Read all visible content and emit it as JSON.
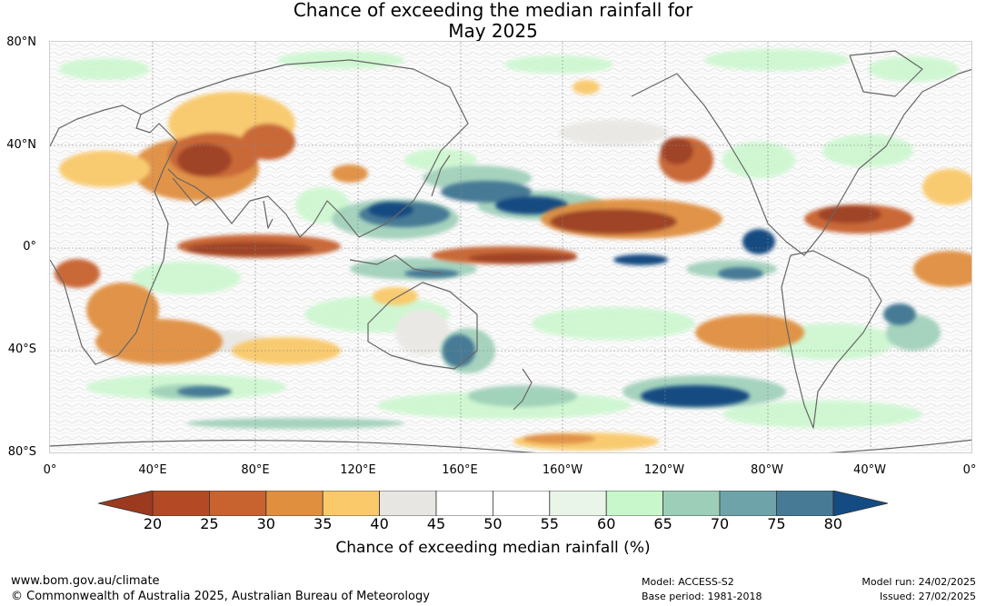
{
  "title": {
    "line1": "Chance of exceeding the median rainfall for",
    "line2": "May 2025"
  },
  "map": {
    "lat_labels": [
      "80°N",
      "40°N",
      "0°",
      "40°S",
      "80°S"
    ],
    "lon_labels": [
      "0°",
      "40°E",
      "80°E",
      "120°E",
      "160°E",
      "160°W",
      "120°W",
      "80°W",
      "40°W",
      "0°"
    ]
  },
  "colorbar": {
    "ticks": [
      "20",
      "25",
      "30",
      "35",
      "40",
      "45",
      "50",
      "55",
      "60",
      "65",
      "70",
      "75",
      "80"
    ],
    "colors": [
      "#9c3a1f",
      "#b34a25",
      "#c8622f",
      "#e08f3f",
      "#f9c96a",
      "#e8e6e2",
      "#ffffff",
      "#ffffff",
      "#e9f5e8",
      "#c9f7cc",
      "#9dcfb8",
      "#6ea3a9",
      "#477a95",
      "#134b82"
    ],
    "label": "Chance of exceeding median rainfall (%)"
  },
  "footer": {
    "url": "www.bom.gov.au/climate",
    "copyright": "© Commonwealth of Australia 2025, Australian Bureau of Meteorology",
    "model": "Model: ACCESS-S2",
    "base_period": "Base period: 1981-2018",
    "model_run": "Model run: 24/02/2025",
    "issued": "Issued: 27/02/2025"
  }
}
